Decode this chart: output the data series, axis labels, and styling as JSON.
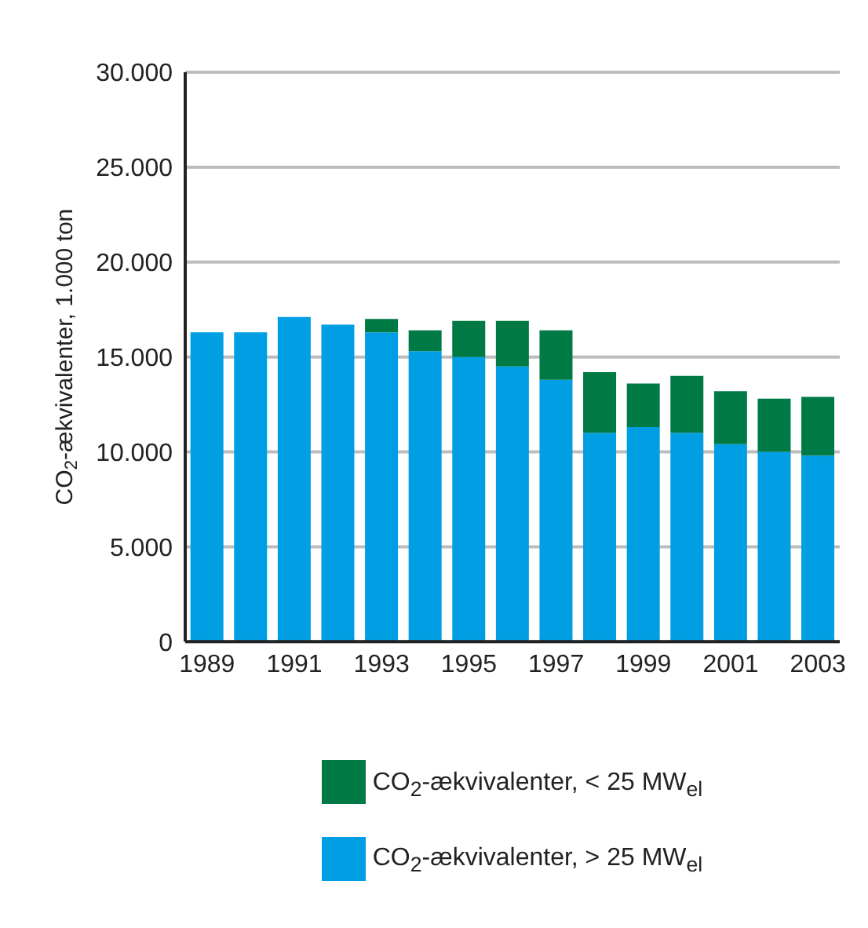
{
  "chart_data": {
    "type": "bar",
    "stacked": true,
    "ylabel": "CO$_{2}$-ækvivalenter, 1.000 ton",
    "categories": [
      "1989",
      null,
      "1991",
      null,
      "1993",
      null,
      "1995",
      null,
      "1997",
      null,
      "1999",
      null,
      "2001",
      null,
      "2003"
    ],
    "series": [
      {
        "name": "CO$_{2}$-ækvivalenter, > 25 MW$_{el}$",
        "color": "#009fe3",
        "values": [
          16300,
          16300,
          17100,
          16700,
          16300,
          15300,
          15000,
          14500,
          13800,
          11000,
          11300,
          11000,
          10400,
          10000,
          9800
        ]
      },
      {
        "name": "CO$_{2}$-ækvivalenter, < 25 MW$_{el}$",
        "color": "#007a45",
        "values": [
          null,
          null,
          null,
          null,
          700,
          1100,
          1900,
          2400,
          2600,
          3200,
          2300,
          3000,
          2800,
          2800,
          3100
        ]
      }
    ],
    "ylim": [
      0,
      30000
    ],
    "yticks": [
      0,
      {
        "value": 5000,
        "label": "5.000"
      },
      {
        "value": 10000,
        "label": "10.000"
      },
      {
        "value": 15000,
        "label": "15.000"
      },
      {
        "value": 20000,
        "label": "20.000"
      },
      {
        "value": 25000,
        "label": "25.000"
      },
      {
        "value": 30000,
        "label": "30.000"
      }
    ],
    "grid": "y",
    "legend": "bottom"
  }
}
